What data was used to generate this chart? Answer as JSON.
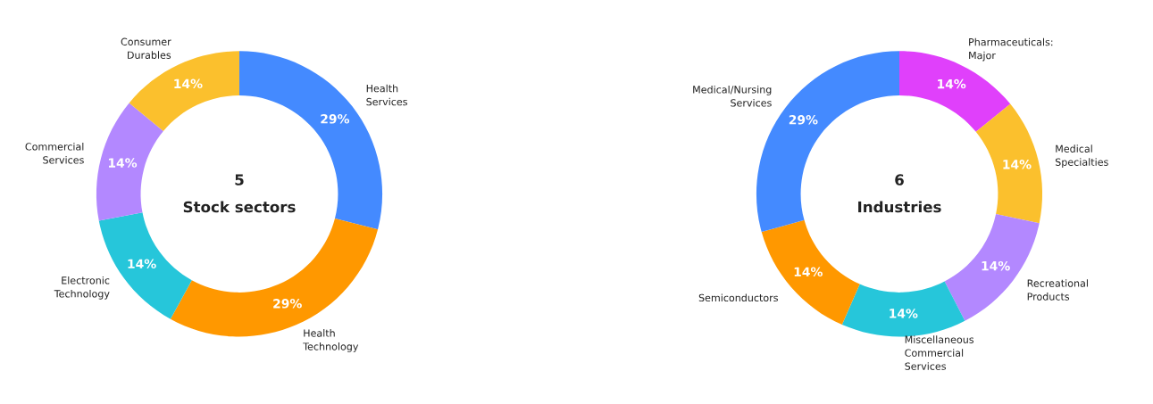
{
  "chart_data": [
    {
      "type": "donut",
      "categories": [
        "Health\nServices",
        "Health\nTechnology",
        "Electronic\nTechnology",
        "Commercial\nServices",
        "Consumer\nDurables"
      ],
      "values": [
        29,
        29,
        14,
        14,
        14
      ],
      "colors": [
        "#448aff",
        "#ff9800",
        "#26c6da",
        "#b388ff",
        "#fbc02d"
      ],
      "value_labels": [
        "29%",
        "29%",
        "14%",
        "14%",
        "14%"
      ],
      "annotations": [
        "5",
        "Stock sectors"
      ]
    },
    {
      "type": "donut",
      "categories": [
        "Pharmaceuticals:\nMajor",
        "Medical\nSpecialties",
        "Recreational\nProducts",
        "Miscellaneous\nCommercial\nServices",
        "Semiconductors",
        "Medical/Nursing\nServices"
      ],
      "values": [
        14,
        14,
        14,
        14,
        14,
        29
      ],
      "colors": [
        "#e040fb",
        "#fbc02d",
        "#b388ff",
        "#26c6da",
        "#ff9800",
        "#448aff"
      ],
      "value_labels": [
        "14%",
        "14%",
        "14%",
        "14%",
        "14%",
        "29%"
      ],
      "annotations": [
        "6",
        "Industries"
      ]
    }
  ]
}
